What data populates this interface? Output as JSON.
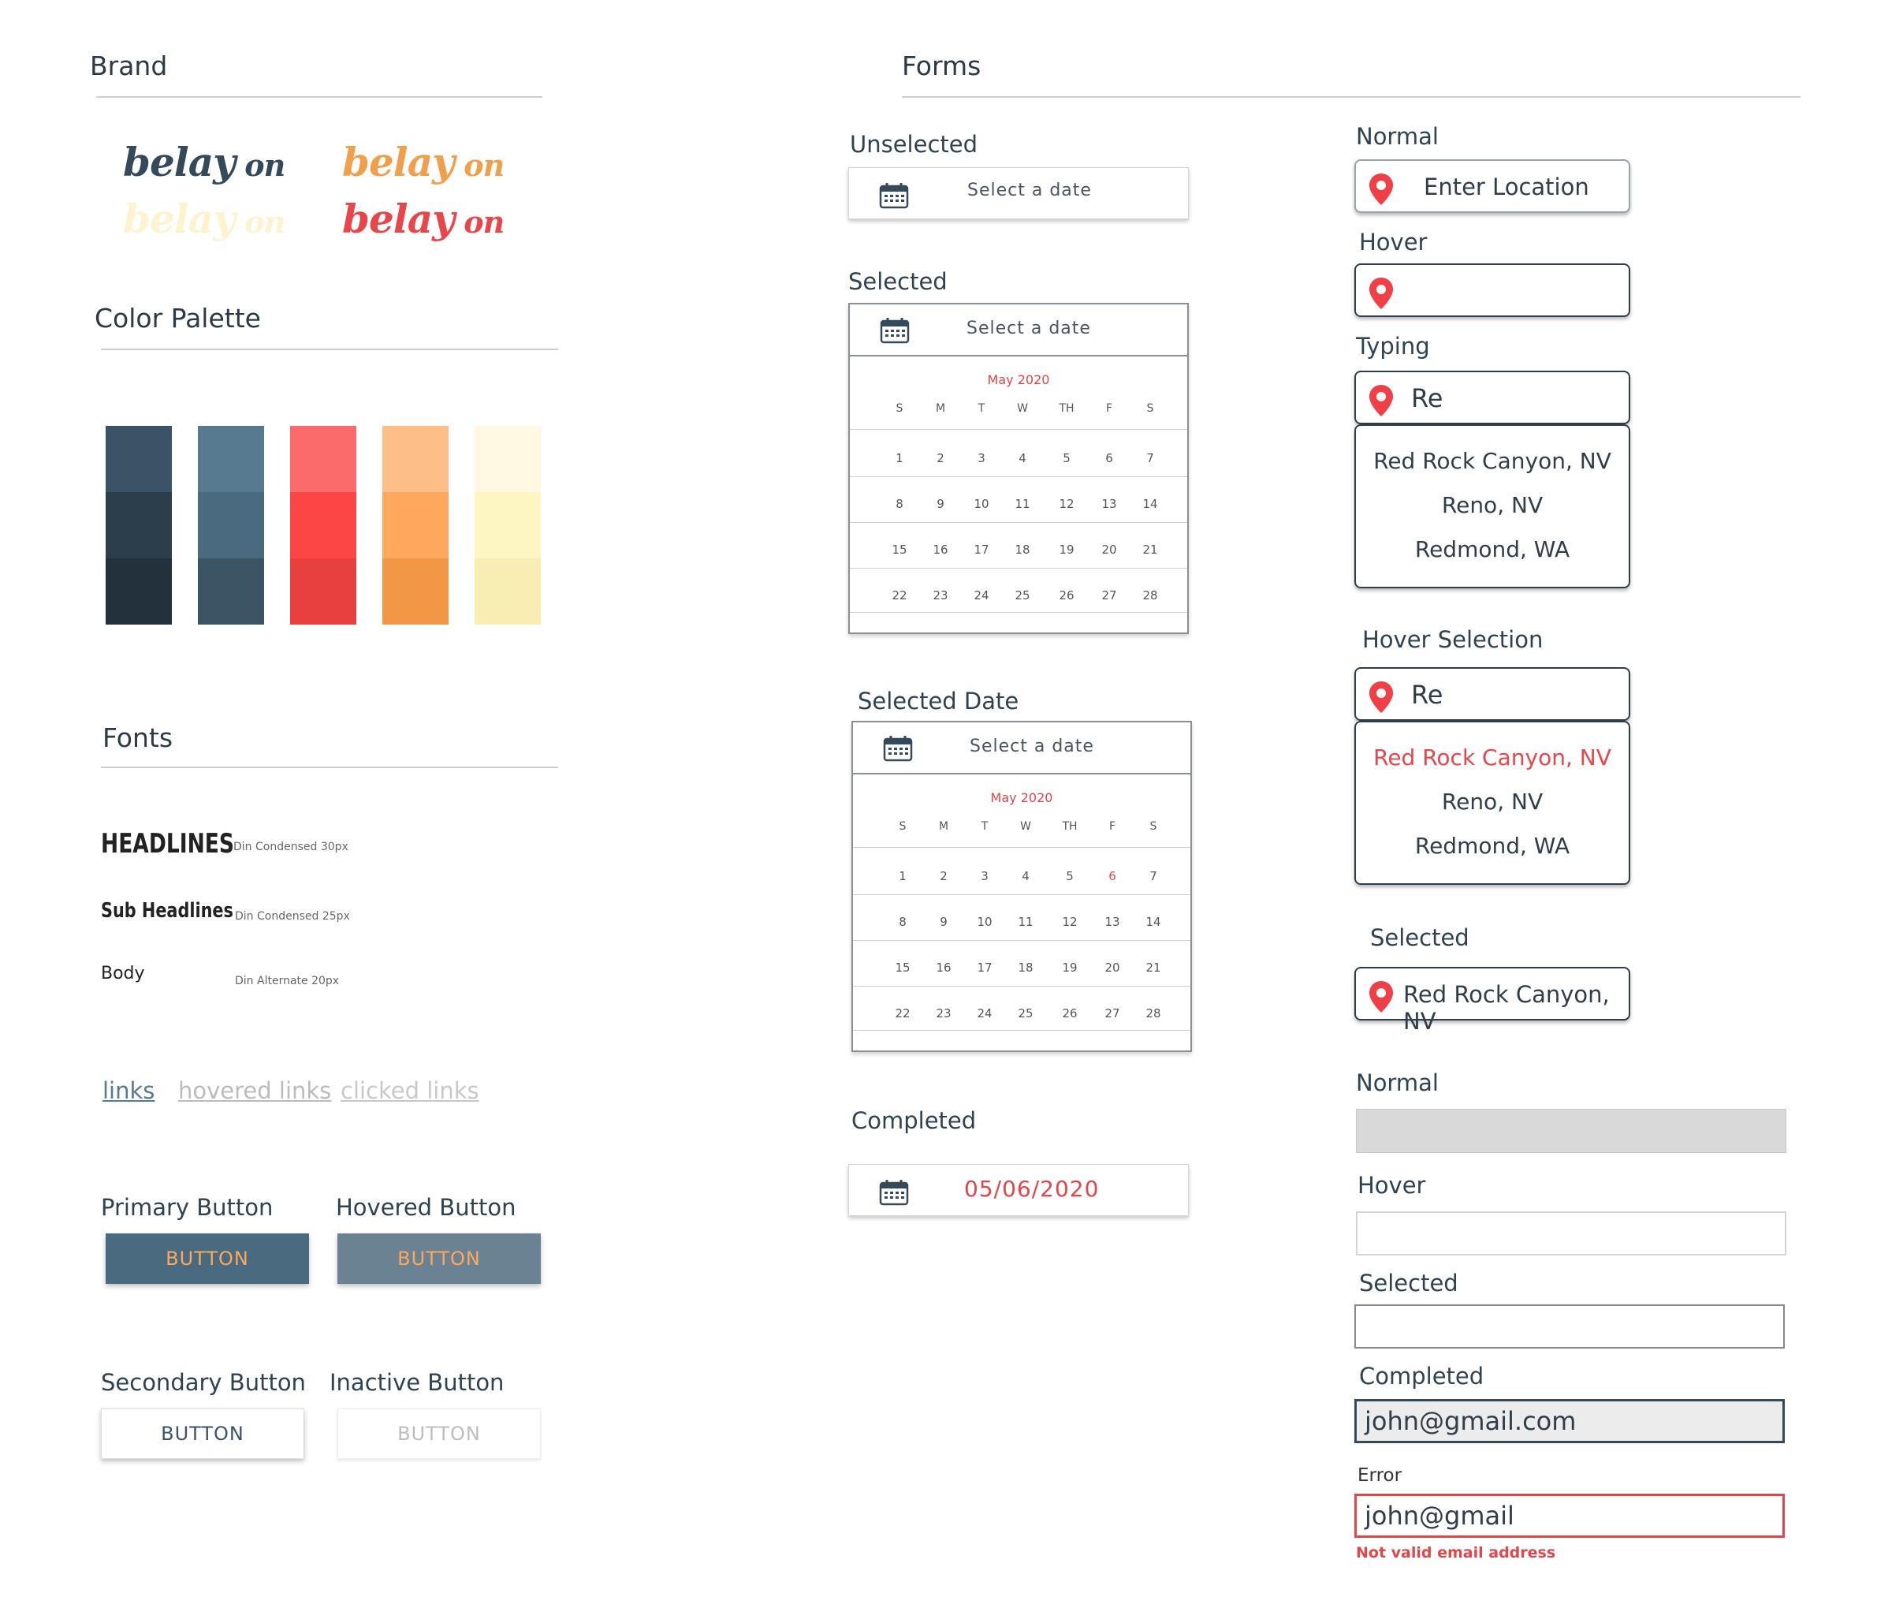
{
  "brand": {
    "title": "Brand",
    "logo_word": "belay",
    "logo_on": "on",
    "colors": {
      "dark": "#34495a",
      "orange": "#f0a04b",
      "cream": "#fdf4cf",
      "red": "#e8464a"
    }
  },
  "palette": {
    "title": "Color Palette",
    "columns": [
      [
        "#3b5366",
        "#2c3e4c",
        "#22313c"
      ],
      [
        "#587a90",
        "#4a6a80",
        "#3c5565"
      ],
      [
        "#fb6b6b",
        "#fc4545",
        "#e83f3f"
      ],
      [
        "#fdbf87",
        "#fda85c",
        "#f29745"
      ],
      [
        "#fff9e3",
        "#fdf6c3",
        "#f8edb3"
      ]
    ]
  },
  "fonts": {
    "title": "Fonts",
    "headlines": "HEADLINES",
    "headlines_desc": "Din Condensed  30px",
    "sub": "Sub Headlines",
    "sub_desc": "Din Condensed 25px",
    "body": "Body",
    "body_desc": "Din Alternate 20px"
  },
  "links": {
    "normal": "links",
    "hovered": "hovered links",
    "clicked": "clicked links"
  },
  "buttons": {
    "primary_label": "Primary Button",
    "hovered_label": "Hovered Button",
    "secondary_label": "Secondary Button",
    "inactive_label": "Inactive Button",
    "text": "BUTTON"
  },
  "forms": {
    "title": "Forms",
    "unselected": "Unselected",
    "selected": "Selected",
    "selected_date": "Selected Date",
    "completed": "Completed",
    "date_placeholder": "Select a date",
    "completed_value": "05/06/2020",
    "calendar": {
      "month": "May 2020",
      "dow": [
        "S",
        "M",
        "T",
        "W",
        "TH",
        "F",
        "S"
      ],
      "weeks": [
        [
          "1",
          "2",
          "3",
          "4",
          "5",
          "6",
          "7"
        ],
        [
          "8",
          "9",
          "10",
          "11",
          "12",
          "13",
          "14"
        ],
        [
          "15",
          "16",
          "17",
          "18",
          "19",
          "20",
          "21"
        ],
        [
          "22",
          "23",
          "24",
          "25",
          "26",
          "27",
          "28"
        ]
      ],
      "highlighted_day": "6"
    }
  },
  "location": {
    "normal": "Normal",
    "hover": "Hover",
    "typing": "Typing",
    "hover_selection": "Hover Selection",
    "selected": "Selected",
    "placeholder": "Enter Location",
    "typed": "Re",
    "options": [
      "Red Rock Canyon, NV",
      "Reno, NV",
      "Redmond, WA"
    ],
    "selected_value": "Red Rock Canyon, NV"
  },
  "text_inputs": {
    "normal": "Normal",
    "hover": "Hover",
    "selected": "Selected",
    "completed": "Completed",
    "error": "Error",
    "completed_value": "john@gmail.com",
    "error_value": "john@gmail",
    "error_message": "Not valid email address"
  }
}
